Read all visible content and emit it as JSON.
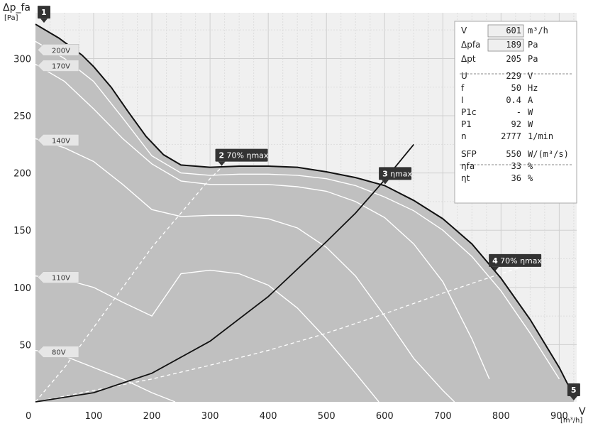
{
  "chart_data": {
    "type": "line",
    "xlabel": "V",
    "xunit": "[m³/h]",
    "ylabel": "Δp_fa",
    "yunit": "[Pa]",
    "xlim": [
      0,
      930
    ],
    "ylim": [
      0,
      340
    ],
    "x_ticks": [
      0,
      100,
      200,
      300,
      400,
      500,
      600,
      700,
      800,
      900
    ],
    "y_ticks": [
      50,
      100,
      150,
      200,
      250,
      300
    ],
    "grid": true,
    "colors": {
      "plot_bg": "#f0f0f0",
      "area": "#c2c2c2",
      "area_dark": "#9e9e9e",
      "main_curve": "#111111",
      "voltage_curve": "#ffffff",
      "marker": "#333333"
    },
    "main_curve": {
      "x": [
        0,
        40,
        80,
        100,
        130,
        160,
        190,
        220,
        250,
        300,
        350,
        400,
        450,
        500,
        550,
        600,
        650,
        700,
        750,
        800,
        850,
        900,
        925
      ],
      "y": [
        330,
        318,
        303,
        293,
        275,
        253,
        232,
        216,
        207,
        205,
        206,
        206,
        205,
        201,
        196,
        189,
        176,
        160,
        138,
        108,
        72,
        30,
        5
      ]
    },
    "voltage_curves": [
      {
        "label": "200V",
        "x": [
          0,
          50,
          100,
          150,
          200,
          250,
          300,
          350,
          400,
          450,
          500,
          550,
          600,
          650,
          700,
          750,
          800,
          850,
          900
        ],
        "y": [
          315,
          300,
          280,
          248,
          215,
          200,
          198,
          199,
          199,
          198,
          195,
          189,
          179,
          167,
          150,
          127,
          97,
          60,
          20
        ]
      },
      {
        "label": "170V",
        "x": [
          0,
          50,
          100,
          150,
          200,
          250,
          300,
          350,
          400,
          450,
          500,
          550,
          600,
          650,
          700,
          750,
          780
        ],
        "y": [
          295,
          280,
          256,
          230,
          208,
          193,
          190,
          190,
          190,
          188,
          184,
          175,
          161,
          138,
          105,
          55,
          20
        ]
      },
      {
        "label": "140V",
        "x": [
          0,
          50,
          100,
          150,
          200,
          250,
          300,
          350,
          400,
          450,
          500,
          550,
          600,
          650,
          700,
          720
        ],
        "y": [
          230,
          222,
          210,
          190,
          168,
          162,
          163,
          163,
          160,
          152,
          135,
          110,
          75,
          38,
          10,
          0
        ]
      },
      {
        "label": "110V",
        "x": [
          0,
          50,
          100,
          150,
          200,
          250,
          300,
          350,
          400,
          450,
          500,
          550,
          590
        ],
        "y": [
          110,
          107,
          100,
          87,
          75,
          112,
          115,
          112,
          102,
          82,
          55,
          25,
          0
        ]
      },
      {
        "label": "80V",
        "x": [
          0,
          50,
          100,
          150,
          200,
          240
        ],
        "y": [
          45,
          40,
          30,
          20,
          8,
          0
        ]
      }
    ],
    "efficiency_curves": [
      {
        "name": "70% ηmax low",
        "x": [
          0,
          100,
          200,
          300,
          400,
          500,
          600,
          700,
          800,
          860
        ],
        "y": [
          0,
          10,
          20,
          32,
          45,
          60,
          77,
          95,
          112,
          122
        ]
      },
      {
        "name": "70% ηmax high",
        "x": [
          0,
          50,
          100,
          150,
          200,
          250,
          300,
          330
        ],
        "y": [
          0,
          30,
          65,
          100,
          135,
          165,
          195,
          210
        ]
      }
    ],
    "system_curve": {
      "name": "ηmax",
      "x": [
        0,
        100,
        200,
        300,
        400,
        500,
        550,
        600,
        650
      ],
      "y": [
        0,
        8,
        25,
        53,
        92,
        140,
        165,
        194,
        225
      ]
    },
    "markers": [
      {
        "num": "1",
        "text": "",
        "x": 0,
        "y": 330
      },
      {
        "num": "2",
        "text": "70% ηmax",
        "x": 320,
        "y": 205
      },
      {
        "num": "3",
        "text": "ηmax",
        "x": 601,
        "y": 189
      },
      {
        "num": "4",
        "text": "70% ηmax",
        "x": 790,
        "y": 113
      },
      {
        "num": "5",
        "text": "",
        "x": 925,
        "y": 5
      }
    ],
    "info_panel": [
      {
        "label": "V",
        "value": "601",
        "unit": "m³/h",
        "boxed": true
      },
      {
        "label": "Δpfa",
        "value": "189",
        "unit": "Pa",
        "boxed": true
      },
      {
        "label": "Δpt",
        "value": "205",
        "unit": "Pa",
        "boxed": false
      },
      {
        "label": "U",
        "value": "229",
        "unit": "V",
        "boxed": false
      },
      {
        "label": "f",
        "value": "50",
        "unit": "Hz",
        "boxed": false
      },
      {
        "label": "I",
        "value": "0.4",
        "unit": "A",
        "boxed": false
      },
      {
        "label": "P1c",
        "value": "-",
        "unit": "W",
        "boxed": false
      },
      {
        "label": "P1",
        "value": "92",
        "unit": "W",
        "boxed": false
      },
      {
        "label": "n",
        "value": "2777",
        "unit": "1/min",
        "boxed": false
      },
      {
        "label": "SFP",
        "value": "550",
        "unit": "W/(m³/s)",
        "boxed": false
      },
      {
        "label": "ηfa",
        "value": "33",
        "unit": "%",
        "boxed": false
      },
      {
        "label": "ηt",
        "value": "36",
        "unit": "%",
        "boxed": false
      }
    ]
  }
}
